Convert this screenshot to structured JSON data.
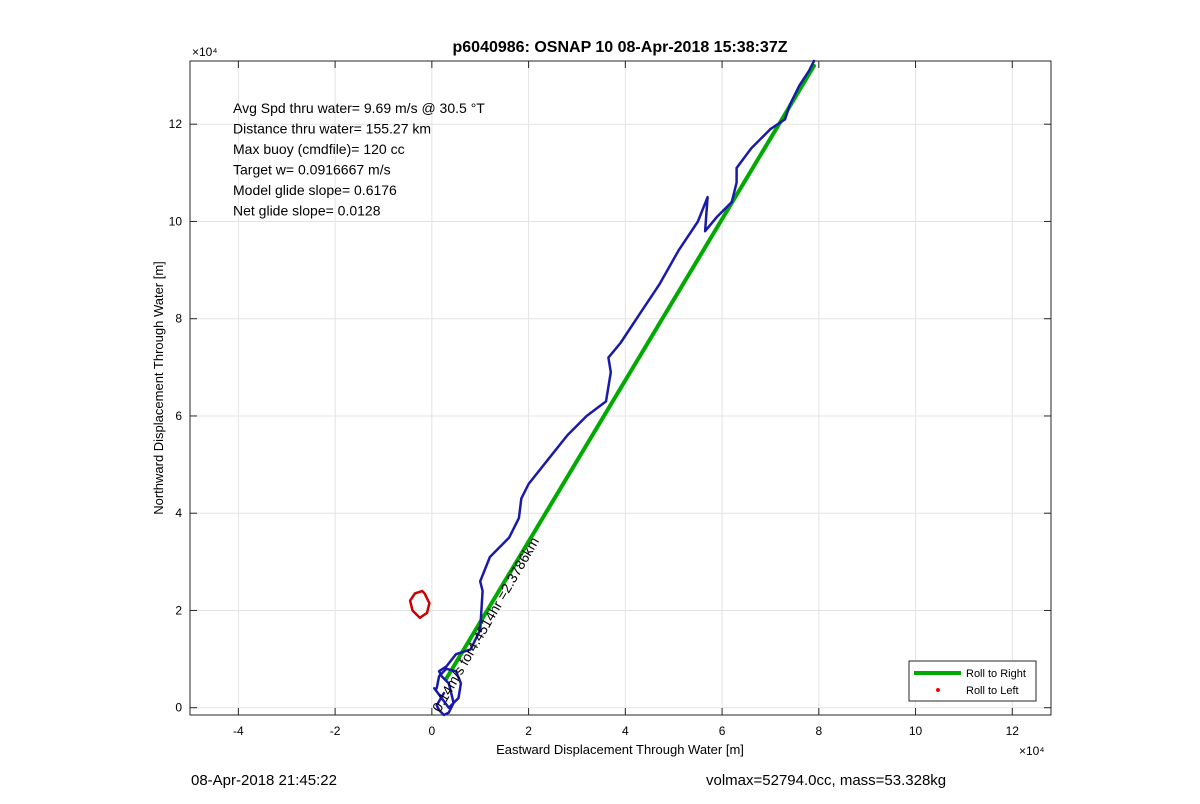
{
  "chart_data": {
    "type": "line",
    "title": "p6040986: OSNAP 10 08-Apr-2018 15:38:37Z",
    "xlabel": "Eastward Displacement Through Water [m]",
    "ylabel": "Northward Displacement Through Water [m]",
    "xlim": [
      -5,
      12.8
    ],
    "ylim": [
      -0.15,
      13.3
    ],
    "x_exponent": "×10⁴",
    "y_exponent": "×10⁴",
    "x_ticks": [
      -4,
      -2,
      0,
      2,
      4,
      6,
      8,
      10,
      12
    ],
    "y_ticks": [
      0,
      2,
      4,
      6,
      8,
      10,
      12
    ],
    "x_tick_labels": [
      "-4",
      "-2",
      "0",
      "2",
      "4",
      "6",
      "8",
      "10",
      "12"
    ],
    "y_tick_labels": [
      "0",
      "2",
      "4",
      "6",
      "8",
      "10",
      "12"
    ],
    "grid": true,
    "legend_position": "bottom-right",
    "annotations": [
      "Avg Spd thru water=  9.69 m/s @  30.5 °T",
      "Distance thru water= 155.27 km",
      "Max buoy (cmdfile)= 120 cc",
      "Target w= 0.0916667 m/s",
      "Model glide slope= 0.6176",
      "Net glide slope= 0.0128"
    ],
    "current_label": "0.14m/s for4.4514hr =2.3786km",
    "series": [
      {
        "name": "Roll to Right",
        "color": "#00aa00",
        "x": [
          0.3,
          7.9
        ],
        "y": [
          0.6,
          13.2
        ]
      },
      {
        "name": "Roll to Left",
        "color": "#ff0000",
        "x": [],
        "y": []
      },
      {
        "color": "#1a1aaa",
        "x": [
          0.25,
          0.1,
          0.15,
          0.25,
          0.35,
          0.45,
          0.35,
          0.2,
          0.15,
          0.3,
          0.5,
          0.8,
          1.0,
          1.05,
          1.0,
          1.2,
          1.6,
          1.8,
          1.85,
          2.0,
          2.4,
          2.8,
          3.2,
          3.6,
          3.7,
          3.65,
          3.9,
          4.3,
          4.7,
          5.1,
          5.5,
          5.7,
          5.65,
          5.9,
          6.2,
          6.3,
          6.3,
          6.6,
          7.0,
          7.3,
          7.4,
          7.6,
          7.8,
          7.9
        ],
        "y": [
          0.3,
          0.05,
          -0.05,
          -0.15,
          -0.1,
          0.1,
          0.5,
          0.65,
          0.75,
          0.85,
          1.1,
          1.2,
          1.6,
          2.4,
          2.6,
          3.1,
          3.5,
          3.9,
          4.3,
          4.6,
          5.1,
          5.6,
          6.0,
          6.3,
          6.9,
          7.2,
          7.5,
          8.1,
          8.7,
          9.4,
          10.0,
          10.5,
          9.8,
          10.1,
          10.4,
          10.8,
          11.1,
          11.5,
          11.9,
          12.1,
          12.4,
          12.8,
          13.1,
          13.3
        ]
      },
      {
        "color": "#cc0000",
        "x": [
          -0.2,
          -0.35,
          -0.45,
          -0.4,
          -0.25,
          -0.1,
          -0.05,
          -0.15,
          -0.2
        ],
        "y": [
          2.4,
          2.35,
          2.2,
          2.0,
          1.85,
          1.95,
          2.15,
          2.35,
          2.4
        ]
      },
      {
        "color": "#1a1aaa",
        "x": [
          0.05,
          0.35,
          0.55,
          0.6,
          0.5,
          0.3,
          0.15,
          0.1
        ],
        "y": [
          0.4,
          0.0,
          0.2,
          0.5,
          0.75,
          0.8,
          0.65,
          0.4
        ]
      }
    ]
  },
  "footer": {
    "left": "08-Apr-2018 21:45:22",
    "right": "volmax=52794.0cc, mass=53.328kg"
  }
}
